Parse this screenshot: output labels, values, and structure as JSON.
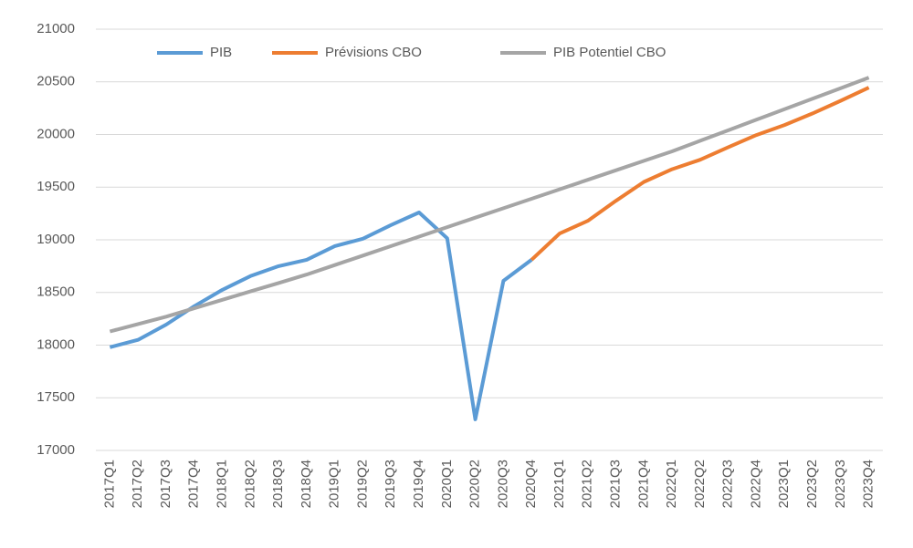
{
  "chart_data": {
    "type": "line",
    "categories": [
      "2017Q1",
      "2017Q2",
      "2017Q3",
      "2017Q4",
      "2018Q1",
      "2018Q2",
      "2018Q3",
      "2018Q4",
      "2019Q1",
      "2019Q2",
      "2019Q3",
      "2019Q4",
      "2020Q1",
      "2020Q2",
      "2020Q3",
      "2020Q4",
      "2021Q1",
      "2021Q2",
      "2021Q3",
      "2021Q4",
      "2022Q1",
      "2022Q2",
      "2022Q3",
      "2022Q4",
      "2023Q1",
      "2023Q2",
      "2023Q3",
      "2023Q4"
    ],
    "series": [
      {
        "name": "PIB",
        "color": "#5b9bd5",
        "values": [
          17980,
          18050,
          18195,
          18370,
          18525,
          18655,
          18750,
          18810,
          18940,
          19010,
          19140,
          19260,
          19015,
          17295,
          18610,
          18810,
          null,
          null,
          null,
          null,
          null,
          null,
          null,
          null,
          null,
          null,
          null,
          null
        ]
      },
      {
        "name": "Prévisions CBO",
        "color": "#ed7d31",
        "values": [
          null,
          null,
          null,
          null,
          null,
          null,
          null,
          null,
          null,
          null,
          null,
          null,
          null,
          null,
          null,
          18810,
          19060,
          19180,
          19370,
          19550,
          19670,
          19760,
          19880,
          19995,
          20090,
          20200,
          20320,
          20445
        ]
      },
      {
        "name": "PIB Potentiel CBO",
        "color": "#a5a5a5",
        "values": [
          18130,
          18200,
          18270,
          18350,
          18430,
          18510,
          18590,
          18670,
          18760,
          18850,
          18940,
          19030,
          19120,
          19210,
          19300,
          19390,
          19480,
          19570,
          19660,
          19750,
          19840,
          19940,
          20040,
          20140,
          20240,
          20340,
          20440,
          20540
        ]
      }
    ],
    "ylim": [
      17000,
      21000
    ],
    "yticks": [
      17000,
      17500,
      18000,
      18500,
      19000,
      19500,
      20000,
      20500,
      21000
    ],
    "grid": true,
    "legend": "top"
  }
}
